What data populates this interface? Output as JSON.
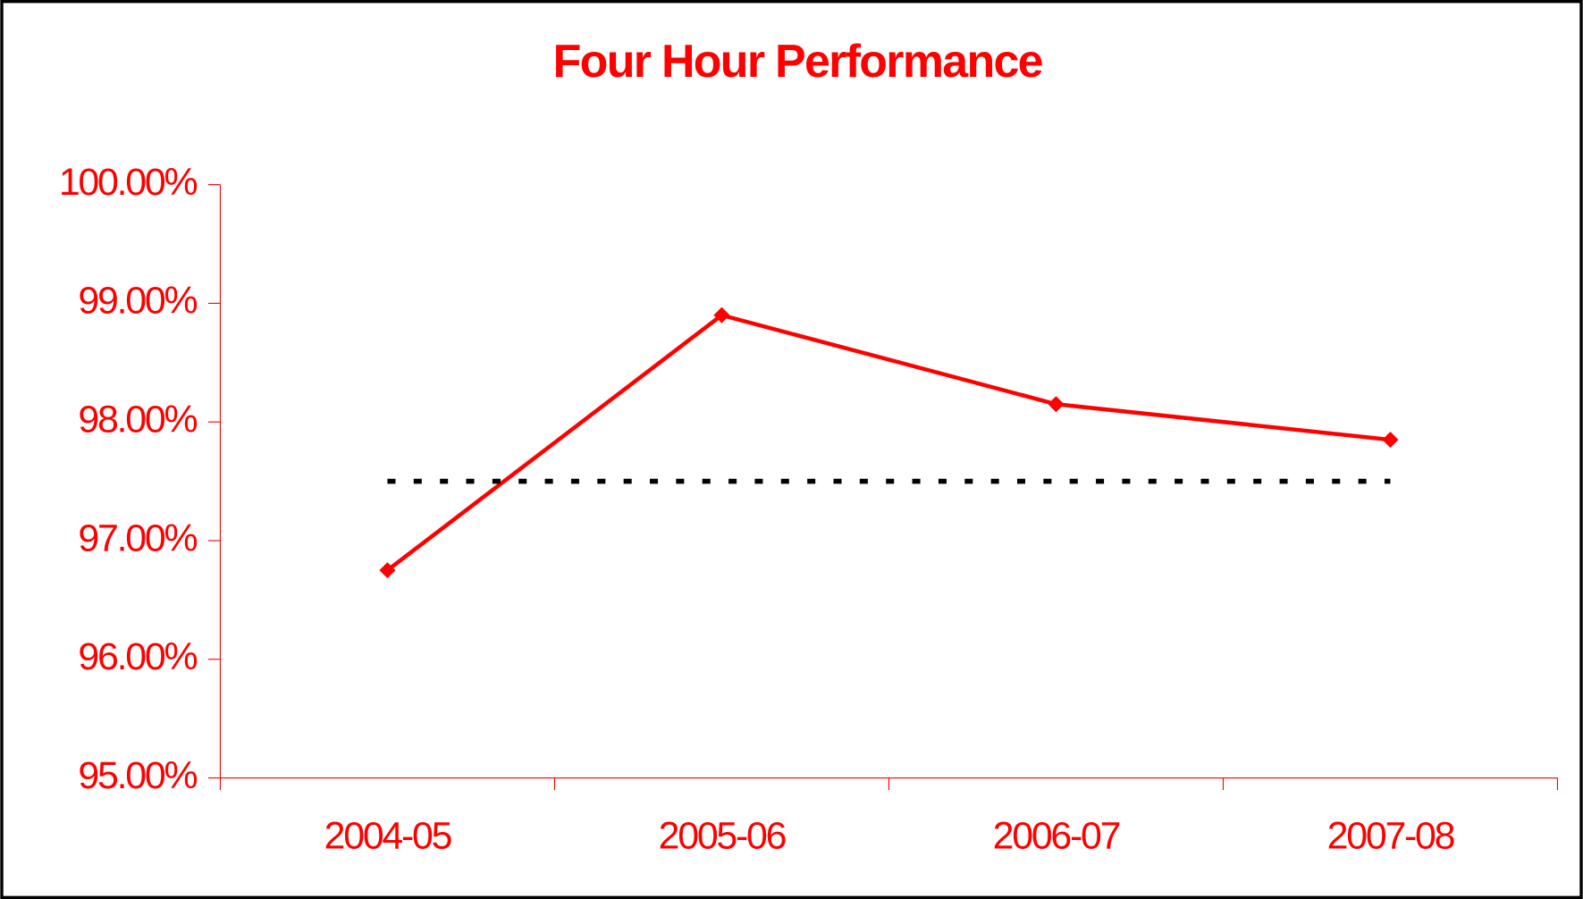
{
  "chart_data": {
    "type": "line",
    "title": "Four Hour Performance",
    "categories": [
      "2004-05",
      "2005-06",
      "2006-07",
      "2007-08"
    ],
    "series": [
      {
        "color": "#ff0000",
        "values": [
          96.75,
          98.9,
          98.15,
          97.85
        ],
        "marker": "diamond"
      },
      {
        "color": "#000000",
        "values": [
          97.5,
          97.5,
          97.5,
          97.5
        ],
        "dash": "dotted"
      }
    ],
    "ylim": [
      95,
      100
    ],
    "yticks": [
      {
        "value": 95,
        "label": "95.00%"
      },
      {
        "value": 96,
        "label": "96.00%"
      },
      {
        "value": 97,
        "label": "97.00%"
      },
      {
        "value": 98,
        "label": "98.00%"
      },
      {
        "value": 99,
        "label": "99.00%"
      },
      {
        "value": 100,
        "label": "100.00%"
      }
    ],
    "grid": false
  }
}
